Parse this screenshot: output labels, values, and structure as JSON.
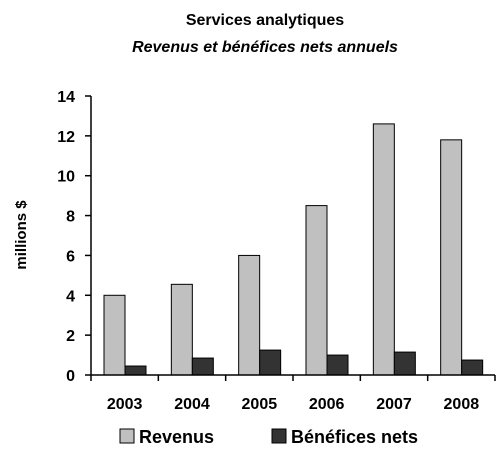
{
  "chart_data": {
    "type": "bar",
    "title": "Services analytiques",
    "subtitle": "Revenus et bénéfices nets annuels",
    "xlabel": "",
    "ylabel": "millions $",
    "categories": [
      "2003",
      "2004",
      "2005",
      "2006",
      "2007",
      "2008"
    ],
    "series": [
      {
        "name": "Revenus",
        "values": [
          4.0,
          4.55,
          6.0,
          8.5,
          12.6,
          11.8
        ],
        "color": "#c0c0c0"
      },
      {
        "name": "Bénéfices nets",
        "values": [
          0.45,
          0.85,
          1.25,
          1.0,
          1.15,
          0.75
        ],
        "color": "#333333"
      }
    ],
    "ylim": [
      0,
      14
    ],
    "yticks": [
      "0",
      "2",
      "4",
      "6",
      "8",
      "10",
      "12",
      "14"
    ],
    "grid": false,
    "legend_position": "bottom"
  }
}
